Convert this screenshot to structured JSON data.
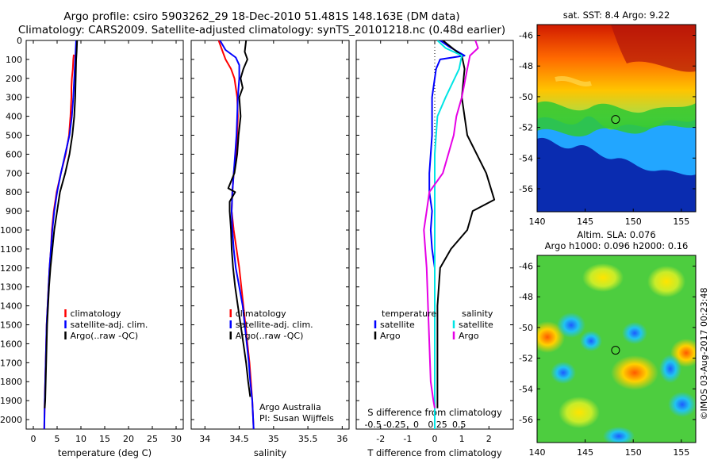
{
  "header": {
    "title_line1": "Argo profile: csiro 5903262_29 18-Dec-2010 51.481S 148.163E (DM data)",
    "title_line2": "Climatology: CARS2009. Satellite-adjusted climatology: synTS_20101218.nc (0.48d earlier)"
  },
  "colors": {
    "climatology": "#ff0000",
    "satellite": "#0000ff",
    "argo": "#000000",
    "salinity_satellite": "#00e5e5",
    "salinity_argo": "#e600e6"
  },
  "depth_axis": {
    "ticks": [
      "0",
      "100",
      "200",
      "300",
      "400",
      "500",
      "600",
      "700",
      "800",
      "900",
      "1000",
      "1100",
      "1200",
      "1300",
      "1400",
      "1500",
      "1600",
      "1700",
      "1800",
      "1900",
      "2000"
    ],
    "range": [
      0,
      2050
    ]
  },
  "chart_data": [
    {
      "type": "line",
      "panel": "temperature",
      "xlabel": "temperature (deg C)",
      "ylabel": "",
      "xlim": [
        -1.5,
        31.5
      ],
      "ylim": [
        2050,
        0
      ],
      "xticks": [
        "0",
        "5",
        "10",
        "15",
        "20",
        "25",
        "30"
      ],
      "legend": {
        "placement": "lower-middle",
        "entries": [
          "climatology",
          "satellite-adj. clim.",
          "Argo(..raw -QC)"
        ]
      },
      "series": [
        {
          "name": "climatology",
          "color": "#ff0000",
          "points": [
            [
              8.5,
              75
            ],
            [
              8.4,
              100
            ],
            [
              8.3,
              150
            ],
            [
              8.1,
              200
            ],
            [
              8.0,
              250
            ],
            [
              8.0,
              300
            ],
            [
              7.9,
              350
            ],
            [
              7.8,
              400
            ],
            [
              7.5,
              500
            ],
            [
              6.8,
              600
            ],
            [
              5.8,
              700
            ],
            [
              4.9,
              800
            ],
            [
              4.3,
              900
            ],
            [
              3.9,
              1000
            ],
            [
              3.7,
              1100
            ],
            [
              3.4,
              1200
            ],
            [
              3.2,
              1300
            ],
            [
              3.0,
              1400
            ],
            [
              2.8,
              1500
            ],
            [
              2.7,
              1600
            ],
            [
              2.6,
              1700
            ],
            [
              2.5,
              1800
            ],
            [
              2.4,
              1900
            ],
            [
              2.3,
              2050
            ]
          ]
        },
        {
          "name": "satellite-adj. clim.",
          "color": "#0000ff",
          "points": [
            [
              9.0,
              0
            ],
            [
              8.9,
              50
            ],
            [
              8.8,
              100
            ],
            [
              8.6,
              200
            ],
            [
              8.4,
              300
            ],
            [
              8.1,
              400
            ],
            [
              7.6,
              500
            ],
            [
              6.7,
              600
            ],
            [
              5.8,
              700
            ],
            [
              5.0,
              800
            ],
            [
              4.4,
              900
            ],
            [
              4.0,
              1000
            ],
            [
              3.7,
              1100
            ],
            [
              3.4,
              1200
            ],
            [
              3.2,
              1300
            ],
            [
              3.0,
              1400
            ],
            [
              2.8,
              1500
            ],
            [
              2.7,
              1600
            ],
            [
              2.6,
              1700
            ],
            [
              2.5,
              1800
            ],
            [
              2.4,
              1900
            ],
            [
              2.3,
              2050
            ]
          ]
        },
        {
          "name": "Argo(..raw -QC)",
          "color": "#000000",
          "points": [
            [
              9.2,
              0
            ],
            [
              9.1,
              60
            ],
            [
              9.0,
              100
            ],
            [
              8.9,
              200
            ],
            [
              8.8,
              300
            ],
            [
              8.6,
              400
            ],
            [
              8.2,
              500
            ],
            [
              7.6,
              600
            ],
            [
              6.7,
              700
            ],
            [
              5.6,
              800
            ],
            [
              5.0,
              900
            ],
            [
              4.4,
              1000
            ],
            [
              4.0,
              1100
            ],
            [
              3.6,
              1200
            ],
            [
              3.3,
              1300
            ],
            [
              3.1,
              1400
            ],
            [
              2.9,
              1500
            ],
            [
              2.8,
              1600
            ],
            [
              2.7,
              1700
            ],
            [
              2.6,
              1800
            ],
            [
              2.5,
              1900
            ],
            [
              2.4,
              1940
            ]
          ]
        }
      ]
    },
    {
      "type": "line",
      "panel": "salinity",
      "xlabel": "salinity",
      "ylabel": "",
      "xlim": [
        33.8,
        36.1
      ],
      "ylim": [
        2050,
        0
      ],
      "xticks": [
        "34",
        "34.5",
        "35",
        "35.5",
        "36"
      ],
      "legend": {
        "placement": "lower-middle",
        "entries": [
          "climatology",
          "satellite-adj. clim.",
          "Argo(..raw -QC)"
        ]
      },
      "annotation": {
        "line1": "Argo Australia",
        "line2": "PI: Susan Wijffels"
      },
      "series": [
        {
          "name": "climatology",
          "color": "#ff0000",
          "points": [
            [
              34.2,
              0
            ],
            [
              34.25,
              50
            ],
            [
              34.3,
              100
            ],
            [
              34.38,
              150
            ],
            [
              34.43,
              200
            ],
            [
              34.47,
              300
            ],
            [
              34.48,
              400
            ],
            [
              34.47,
              500
            ],
            [
              34.45,
              600
            ],
            [
              34.42,
              700
            ],
            [
              34.4,
              800
            ],
            [
              34.39,
              900
            ],
            [
              34.42,
              1000
            ],
            [
              34.46,
              1100
            ],
            [
              34.5,
              1200
            ],
            [
              34.53,
              1300
            ],
            [
              34.56,
              1400
            ],
            [
              34.59,
              1500
            ],
            [
              34.62,
              1600
            ],
            [
              34.65,
              1700
            ],
            [
              34.67,
              1800
            ],
            [
              34.69,
              1900
            ],
            [
              34.71,
              2050
            ]
          ]
        },
        {
          "name": "satellite-adj. clim.",
          "color": "#0000ff",
          "points": [
            [
              34.22,
              0
            ],
            [
              34.3,
              50
            ],
            [
              34.45,
              90
            ],
            [
              34.5,
              130
            ],
            [
              34.5,
              200
            ],
            [
              34.48,
              300
            ],
            [
              34.47,
              400
            ],
            [
              34.46,
              500
            ],
            [
              34.44,
              600
            ],
            [
              34.42,
              700
            ],
            [
              34.4,
              800
            ],
            [
              34.39,
              900
            ],
            [
              34.4,
              1000
            ],
            [
              34.42,
              1100
            ],
            [
              34.45,
              1200
            ],
            [
              34.5,
              1300
            ],
            [
              34.55,
              1400
            ],
            [
              34.58,
              1500
            ],
            [
              34.61,
              1600
            ],
            [
              34.64,
              1700
            ],
            [
              34.66,
              1800
            ],
            [
              34.69,
              1900
            ],
            [
              34.71,
              2050
            ]
          ]
        },
        {
          "name": "Argo(..raw -QC)",
          "color": "#000000",
          "points": [
            [
              34.6,
              0
            ],
            [
              34.58,
              60
            ],
            [
              34.62,
              100
            ],
            [
              34.56,
              150
            ],
            [
              34.52,
              200
            ],
            [
              34.55,
              250
            ],
            [
              34.5,
              300
            ],
            [
              34.52,
              400
            ],
            [
              34.49,
              500
            ],
            [
              34.47,
              600
            ],
            [
              34.43,
              700
            ],
            [
              34.34,
              780
            ],
            [
              34.44,
              800
            ],
            [
              34.36,
              850
            ],
            [
              34.36,
              900
            ],
            [
              34.38,
              1000
            ],
            [
              34.39,
              1100
            ],
            [
              34.41,
              1200
            ],
            [
              34.44,
              1300
            ],
            [
              34.48,
              1400
            ],
            [
              34.52,
              1500
            ],
            [
              34.56,
              1600
            ],
            [
              34.6,
              1700
            ],
            [
              34.63,
              1800
            ],
            [
              34.66,
              1880
            ]
          ]
        }
      ]
    },
    {
      "type": "line",
      "panel": "difference",
      "xlabel": "T difference from climatology",
      "xlabel_top": "S difference from climatology",
      "ylabel": "",
      "xlim": [
        -2.9,
        2.9
      ],
      "ylim": [
        2050,
        0
      ],
      "xticks_T": [
        "-2",
        "-1",
        "0",
        "1",
        "2"
      ],
      "xticks_S": [
        "-0.5",
        "-0.25",
        "0",
        "0.25",
        "0.5"
      ],
      "legend": {
        "placement": "lower-middle",
        "temperature_header": "temperature",
        "salinity_header": "salinity",
        "entries": [
          "satellite",
          "Argo",
          "satellite",
          "Argo"
        ]
      },
      "series": [
        {
          "name": "satellite",
          "color": "#0000ff",
          "group": "temperature",
          "points": [
            [
              0.2,
              0
            ],
            [
              0.5,
              30
            ],
            [
              1.1,
              80
            ],
            [
              0.2,
              100
            ],
            [
              0.05,
              150
            ],
            [
              -0.1,
              300
            ],
            [
              -0.1,
              500
            ],
            [
              -0.2,
              700
            ],
            [
              -0.2,
              800
            ],
            [
              -0.1,
              900
            ],
            [
              -0.15,
              1000
            ],
            [
              -0.1,
              1100
            ],
            [
              0,
              1200
            ],
            [
              0,
              1400
            ],
            [
              0,
              1600
            ],
            [
              0,
              1800
            ],
            [
              0,
              2050
            ]
          ]
        },
        {
          "name": "Argo",
          "color": "#000000",
          "group": "temperature",
          "points": [
            [
              0.3,
              0
            ],
            [
              1.0,
              80
            ],
            [
              1.1,
              150
            ],
            [
              1.0,
              300
            ],
            [
              1.2,
              500
            ],
            [
              1.9,
              700
            ],
            [
              2.2,
              840
            ],
            [
              1.4,
              900
            ],
            [
              1.2,
              1000
            ],
            [
              0.6,
              1100
            ],
            [
              0.2,
              1200
            ],
            [
              0.1,
              1400
            ],
            [
              0.1,
              1600
            ],
            [
              0.1,
              1800
            ],
            [
              0.1,
              1940
            ]
          ]
        },
        {
          "name": "satellite",
          "color": "#00e5e5",
          "group": "salinity",
          "points": [
            [
              0.1,
              0
            ],
            [
              0.4,
              40
            ],
            [
              1.0,
              80
            ],
            [
              0.9,
              150
            ],
            [
              0.4,
              300
            ],
            [
              0.1,
              400
            ],
            [
              0,
              600
            ],
            [
              0,
              800
            ],
            [
              0,
              1000
            ],
            [
              0,
              1200
            ],
            [
              0,
              1400
            ],
            [
              0,
              1600
            ],
            [
              0,
              1800
            ],
            [
              0,
              2050
            ]
          ]
        },
        {
          "name": "Argo",
          "color": "#e600e6",
          "group": "salinity",
          "points": [
            [
              1.5,
              0
            ],
            [
              1.6,
              40
            ],
            [
              1.3,
              80
            ],
            [
              1.2,
              150
            ],
            [
              1.0,
              300
            ],
            [
              0.8,
              400
            ],
            [
              0.7,
              500
            ],
            [
              0.5,
              600
            ],
            [
              0.3,
              700
            ],
            [
              -0.2,
              800
            ],
            [
              -0.3,
              900
            ],
            [
              -0.4,
              1000
            ],
            [
              -0.3,
              1200
            ],
            [
              -0.25,
              1400
            ],
            [
              -0.2,
              1600
            ],
            [
              -0.15,
              1800
            ],
            [
              -0.05,
              1900
            ],
            [
              0,
              1940
            ]
          ]
        }
      ]
    }
  ],
  "maps": [
    {
      "title": "sat. SST: 8.4 Argo: 9.22",
      "xticks": [
        "140",
        "145",
        "150",
        "155"
      ],
      "yticks": [
        "-46",
        "-48",
        "-50",
        "-52",
        "-54",
        "-56"
      ],
      "xlim": [
        140,
        156.5
      ],
      "ylim": [
        -57.5,
        -45.3
      ],
      "marker": {
        "lon": 148.163,
        "lat": -51.481
      }
    },
    {
      "title_line1": "Altim. SLA: 0.076",
      "title_line2": "Argo h1000: 0.096 h2000: 0.16",
      "xticks": [
        "140",
        "145",
        "150",
        "155"
      ],
      "yticks": [
        "-46",
        "-48",
        "-50",
        "-52",
        "-54",
        "-56"
      ],
      "xlim": [
        140,
        156.5
      ],
      "ylim": [
        -57.5,
        -45.3
      ],
      "marker": {
        "lon": 148.163,
        "lat": -51.481
      }
    }
  ],
  "credit": "©IMOS 03-Aug-2017 00:23:48"
}
